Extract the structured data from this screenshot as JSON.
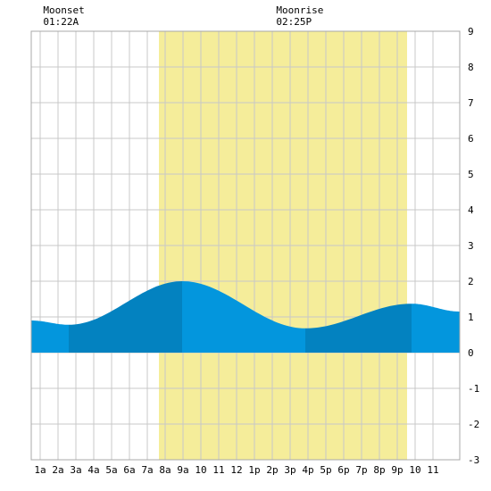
{
  "chart_data": {
    "type": "area",
    "title": "",
    "xlabel": "",
    "ylabel": "",
    "x_tick_labels": [
      "1a",
      "2a",
      "3a",
      "4a",
      "5a",
      "6a",
      "7a",
      "8a",
      "9a",
      "10",
      "11",
      "12",
      "1p",
      "2p",
      "3p",
      "4p",
      "5p",
      "6p",
      "7p",
      "8p",
      "9p",
      "10",
      "11"
    ],
    "x_range_hours": [
      -0.5,
      23.5
    ],
    "ylim": [
      -3,
      9
    ],
    "y_ticks": [
      -3,
      -2,
      -1,
      0,
      1,
      2,
      3,
      4,
      5,
      6,
      7,
      8,
      9
    ],
    "grid": true,
    "daylight_hours": [
      6.65,
      20.55
    ],
    "moon_events": [
      {
        "label": "Moonset",
        "time": "01:22A",
        "hour": 1.37
      },
      {
        "label": "Moonrise",
        "time": "02:25P",
        "hour": 14.42
      }
    ],
    "tide_extremes": [
      {
        "type": "low",
        "hour": 1.6,
        "height": 0.78
      },
      {
        "type": "high",
        "hour": 7.95,
        "height": 2.0
      },
      {
        "type": "low",
        "hour": 14.85,
        "height": 0.68
      },
      {
        "type": "high",
        "hour": 20.8,
        "height": 1.37
      }
    ],
    "tide_end_heights": {
      "start": 0.9,
      "end": 1.15
    },
    "colors": {
      "daylight": "#f5ed9a",
      "tide_light": "#0396dd",
      "tide_dark": "#0382c0",
      "grid": "#c8c8c8",
      "background": "#ffffff"
    }
  }
}
